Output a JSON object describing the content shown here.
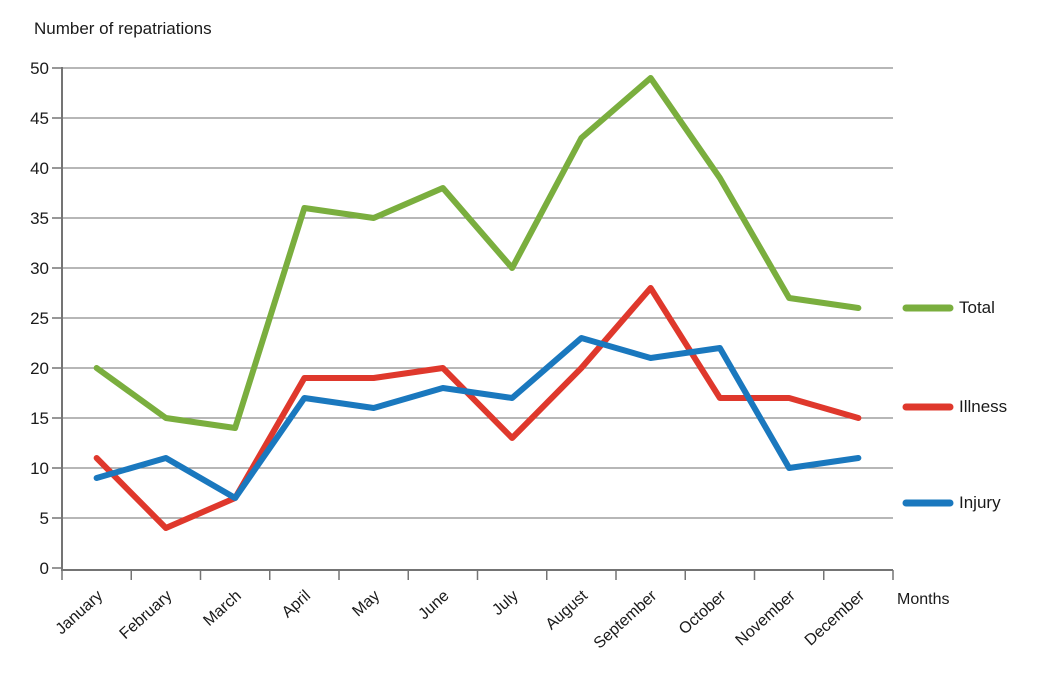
{
  "chart_data": {
    "type": "line",
    "title": "Number of repatriations",
    "xlabel": "Months",
    "ylabel": "",
    "categories": [
      "January",
      "February",
      "March",
      "April",
      "May",
      "June",
      "July",
      "August",
      "September",
      "October",
      "November",
      "December"
    ],
    "series": [
      {
        "name": "Total",
        "color": "#7AAE3E",
        "values": [
          20,
          15,
          14,
          36,
          35,
          38,
          30,
          43,
          49,
          39,
          27,
          26
        ]
      },
      {
        "name": "Illness",
        "color": "#DF382C",
        "values": [
          11,
          4,
          7,
          19,
          19,
          20,
          13,
          20,
          28,
          17,
          17,
          15
        ]
      },
      {
        "name": "Injury",
        "color": "#1A78BE",
        "values": [
          9,
          11,
          7,
          17,
          16,
          18,
          17,
          23,
          21,
          22,
          10,
          11
        ]
      }
    ],
    "ylim": [
      0,
      50
    ],
    "ytick_step": 5,
    "yticks": [
      "0",
      "5",
      "10",
      "15",
      "20",
      "25",
      "30",
      "35",
      "40",
      "45",
      "50"
    ],
    "grid": "horizontal",
    "legend_position": "right",
    "grid_color": "#8C8C8C",
    "axis_color": "#747474",
    "text_color": "#1A1A1A"
  }
}
